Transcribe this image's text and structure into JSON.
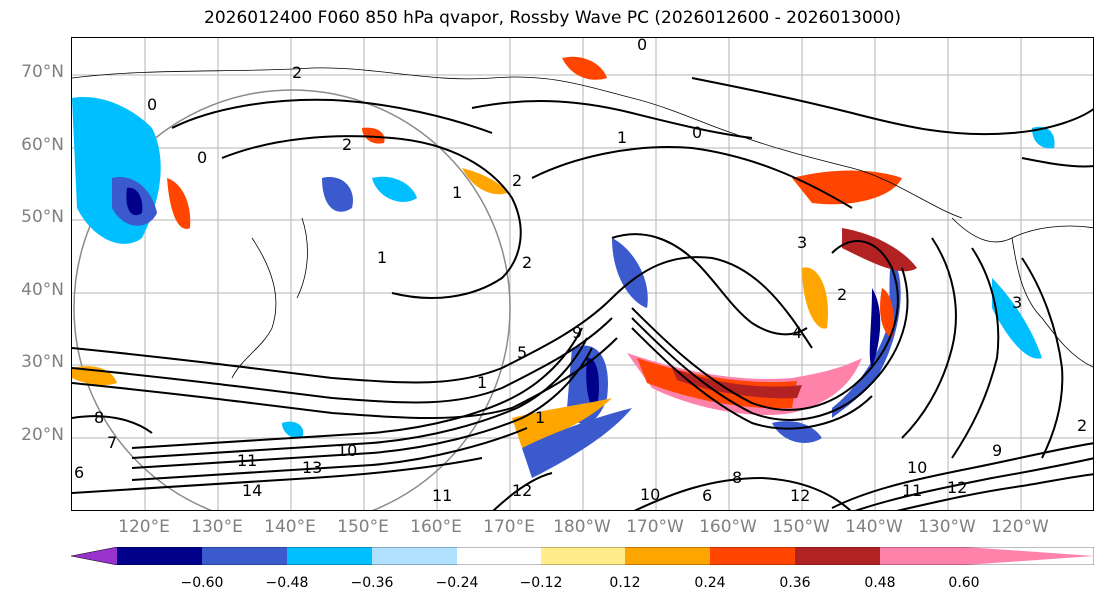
{
  "title": "2026012400 F060 850 hPa qvapor, Rossby Wave PC (2026012600 - 2026013000)",
  "lat_labels": [
    "70°N",
    "60°N",
    "50°N",
    "40°N",
    "30°N",
    "20°N"
  ],
  "lon_labels": [
    "120°E",
    "130°E",
    "140°E",
    "150°E",
    "160°E",
    "170°E",
    "180°W",
    "170°W",
    "160°W",
    "150°W",
    "140°W",
    "130°W",
    "120°W"
  ],
  "colorbar": {
    "colors": [
      "#9932cc",
      "#00008b",
      "#3a5acd",
      "#00bfff",
      "#b0e2ff",
      "#ffffff",
      "#ffec8b",
      "#ffa500",
      "#ff4500",
      "#b22222",
      "#ff82ab"
    ],
    "ticks": [
      "−0.60",
      "−0.48",
      "−0.36",
      "−0.24",
      "−0.12",
      "0.12",
      "0.24",
      "0.36",
      "0.48",
      "0.60"
    ]
  },
  "contour_labels": [
    "0",
    "2",
    "0",
    "0",
    "1",
    "0",
    "2",
    "1",
    "2",
    "1",
    "2",
    "3",
    "2",
    "3",
    "4",
    "9",
    "1",
    "1",
    "13",
    "11",
    "14",
    "10",
    "11",
    "12",
    "10",
    "8",
    "6",
    "12",
    "10",
    "11",
    "12",
    "9",
    "2",
    "5",
    "8",
    "7",
    "6"
  ]
}
